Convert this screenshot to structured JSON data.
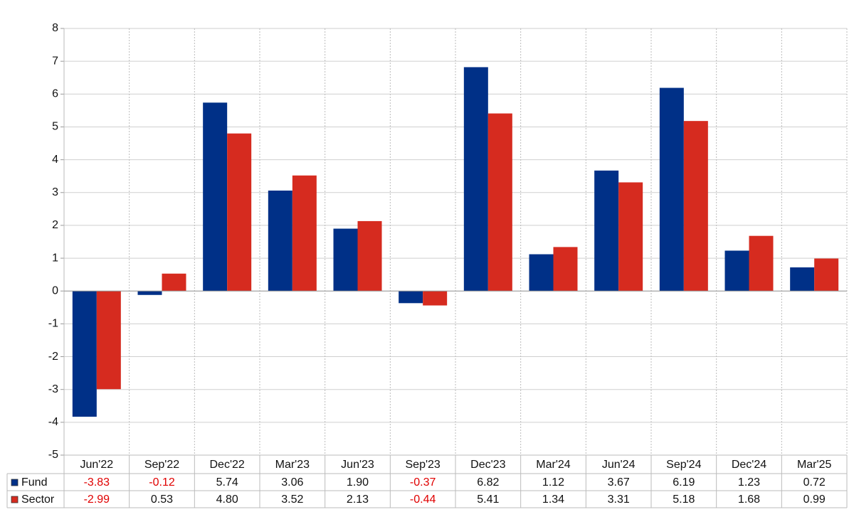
{
  "chart_data": {
    "type": "bar",
    "categories": [
      "Jun'22",
      "Sep'22",
      "Dec'22",
      "Mar'23",
      "Jun'23",
      "Sep'23",
      "Dec'23",
      "Mar'24",
      "Jun'24",
      "Sep'24",
      "Dec'24",
      "Mar'25"
    ],
    "series": [
      {
        "name": "Fund",
        "color": "#003087",
        "values": [
          -3.83,
          -0.12,
          5.74,
          3.06,
          1.9,
          -0.37,
          6.82,
          1.12,
          3.67,
          6.19,
          1.23,
          0.72
        ],
        "value_labels": [
          "-3.83",
          "-0.12",
          "5.74",
          "3.06",
          "1.90",
          "-0.37",
          "6.82",
          "1.12",
          "3.67",
          "6.19",
          "1.23",
          "0.72"
        ]
      },
      {
        "name": "Sector",
        "color": "#d62b1f",
        "values": [
          -2.99,
          0.53,
          4.8,
          3.52,
          2.13,
          -0.44,
          5.41,
          1.34,
          3.31,
          5.18,
          1.68,
          0.99
        ],
        "value_labels": [
          "-2.99",
          "0.53",
          "4.80",
          "3.52",
          "2.13",
          "-0.44",
          "5.41",
          "1.34",
          "3.31",
          "5.18",
          "1.68",
          "0.99"
        ]
      }
    ],
    "ylim": [
      -5,
      8
    ],
    "yticks": [
      -5,
      -4,
      -3,
      -2,
      -1,
      0,
      1,
      2,
      3,
      4,
      5,
      6,
      7,
      8
    ],
    "grid": true,
    "negative_label_color": "#e00000"
  }
}
